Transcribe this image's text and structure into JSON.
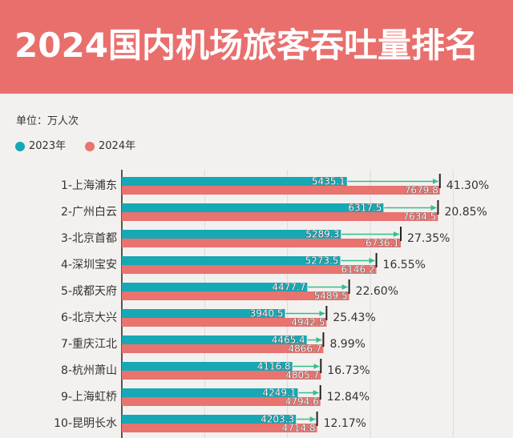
{
  "colors": {
    "banner": "#e96f6d",
    "background": "#f3f1ef",
    "title_text": "#ffffff",
    "arrow": "#34be8c",
    "tick": "#222222"
  },
  "chart_data": {
    "type": "bar",
    "orientation": "horizontal",
    "title": "2024国内机场旅客吞吐量排名",
    "unit": "单位：万人次",
    "categories": [
      "1-上海浦东",
      "2-广州白云",
      "3-北京首都",
      "4-深圳宝安",
      "5-成都天府",
      "6-北京大兴",
      "7-重庆江北",
      "8-杭州萧山",
      "9-上海虹桥",
      "10-昆明长水"
    ],
    "series": [
      {
        "name": "2023年",
        "color": "#16a8b5",
        "values": [
          5435.1,
          6317.5,
          5289.3,
          5273.5,
          4477.7,
          3940.5,
          4465.4,
          4116.8,
          4249.1,
          4203.3
        ]
      },
      {
        "name": "2024年",
        "color": "#e8736f",
        "values": [
          7679.8,
          7634.5,
          6736.1,
          6146.2,
          5489.5,
          4942.5,
          4866.7,
          4805.7,
          4794.6,
          4714.8
        ]
      }
    ],
    "growth_labels": [
      "41.30%",
      "20.85%",
      "27.35%",
      "16.55%",
      "22.60%",
      "25.43%",
      "8.99%",
      "16.73%",
      "12.84%",
      "12.17%"
    ],
    "xlim": [
      0,
      9000
    ],
    "grid": true,
    "legend_position": "top-left"
  }
}
